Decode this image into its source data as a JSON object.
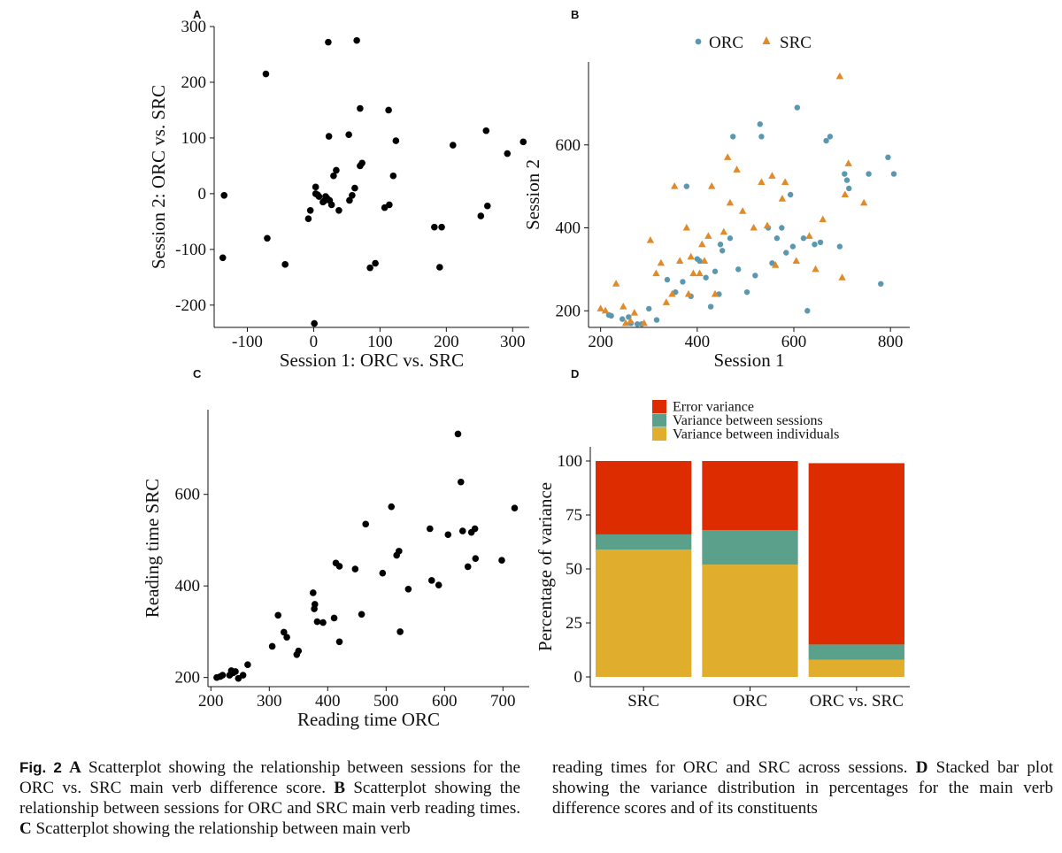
{
  "colors": {
    "orc": "#5b98b0",
    "src": "#e08a2a",
    "error": "#dd2c00",
    "between_sessions": "#5ba08a",
    "between_individuals": "#e0ae2c",
    "points": "#000000"
  },
  "caption": {
    "fig_label": "Fig. 2",
    "left": [
      {
        "bold": "A",
        "text": " Scatterplot showing the relationship between sessions for the ORC vs. SRC main verb difference score. "
      },
      {
        "bold": "B",
        "text": " Scatterplot showing the relationship between sessions for ORC and SRC main verb reading times. "
      },
      {
        "bold": "C",
        "text": " Scatterplot showing the relationship between main verb"
      }
    ],
    "right": [
      {
        "bold": "",
        "text": "reading times for ORC and SRC across sessions. "
      },
      {
        "bold": "D",
        "text": " Stacked bar plot showing the variance distribution in percentages for the main verb difference scores and of its constituents"
      }
    ]
  },
  "chart_data": [
    {
      "panel": "A",
      "type": "scatter",
      "xlabel": "Session 1: ORC vs. SRC",
      "ylabel": "Session 2: ORC vs. SRC",
      "xlim": [
        -150,
        325
      ],
      "ylim": [
        -240,
        300
      ],
      "xticks": [
        -100,
        0,
        100,
        200,
        300
      ],
      "yticks": [
        -200,
        -100,
        0,
        100,
        200,
        300
      ],
      "points": [
        [
          -72,
          215
        ],
        [
          -135,
          -3
        ],
        [
          -137,
          -115
        ],
        [
          -70,
          -80
        ],
        [
          -43,
          -127
        ],
        [
          22,
          272
        ],
        [
          65,
          275
        ],
        [
          70,
          153
        ],
        [
          113,
          150
        ],
        [
          124,
          95
        ],
        [
          23,
          103
        ],
        [
          53,
          106
        ],
        [
          -8,
          -45
        ],
        [
          -5,
          -30
        ],
        [
          3,
          0
        ],
        [
          3,
          12
        ],
        [
          8,
          -5
        ],
        [
          14,
          -15
        ],
        [
          18,
          -5
        ],
        [
          20,
          -8
        ],
        [
          24,
          -12
        ],
        [
          27,
          -20
        ],
        [
          30,
          32
        ],
        [
          34,
          42
        ],
        [
          38,
          -30
        ],
        [
          54,
          -12
        ],
        [
          58,
          -3
        ],
        [
          62,
          10
        ],
        [
          70,
          50
        ],
        [
          73,
          55
        ],
        [
          107,
          -25
        ],
        [
          114,
          -20
        ],
        [
          120,
          32
        ],
        [
          85,
          -133
        ],
        [
          93,
          -125
        ],
        [
          1,
          -233
        ],
        [
          182,
          -60
        ],
        [
          190,
          -132
        ],
        [
          193,
          -60
        ],
        [
          210,
          87
        ],
        [
          252,
          -40
        ],
        [
          260,
          113
        ],
        [
          262,
          -22
        ],
        [
          292,
          72
        ],
        [
          316,
          93
        ],
        [
          6,
          -2
        ],
        [
          16,
          -13
        ]
      ]
    },
    {
      "panel": "B",
      "type": "scatter",
      "xlabel": "Session 1",
      "ylabel": "Session 2",
      "xlim": [
        175,
        840
      ],
      "ylim": [
        160,
        800
      ],
      "xticks": [
        200,
        400,
        600,
        800
      ],
      "yticks": [
        200,
        400,
        600
      ],
      "legend_position": "top",
      "series": [
        {
          "name": "ORC",
          "shape": "circle",
          "points": [
            [
              217,
              190
            ],
            [
              222,
              188
            ],
            [
              245,
              180
            ],
            [
              258,
              185
            ],
            [
              263,
              170
            ],
            [
              276,
              168
            ],
            [
              285,
              168
            ],
            [
              300,
              205
            ],
            [
              316,
              178
            ],
            [
              338,
              275
            ],
            [
              355,
              245
            ],
            [
              370,
              270
            ],
            [
              378,
              500
            ],
            [
              387,
              235
            ],
            [
              400,
              325
            ],
            [
              405,
              320
            ],
            [
              418,
              280
            ],
            [
              428,
              210
            ],
            [
              437,
              295
            ],
            [
              445,
              240
            ],
            [
              448,
              360
            ],
            [
              452,
              345
            ],
            [
              468,
              375
            ],
            [
              474,
              620
            ],
            [
              485,
              300
            ],
            [
              503,
              245
            ],
            [
              520,
              285
            ],
            [
              530,
              650
            ],
            [
              533,
              620
            ],
            [
              547,
              400
            ],
            [
              555,
              315
            ],
            [
              565,
              375
            ],
            [
              575,
              400
            ],
            [
              584,
              340
            ],
            [
              593,
              480
            ],
            [
              598,
              355
            ],
            [
              607,
              690
            ],
            [
              620,
              375
            ],
            [
              628,
              200
            ],
            [
              643,
              360
            ],
            [
              655,
              365
            ],
            [
              667,
              610
            ],
            [
              675,
              620
            ],
            [
              695,
              355
            ],
            [
              705,
              530
            ],
            [
              710,
              515
            ],
            [
              714,
              495
            ],
            [
              755,
              530
            ],
            [
              780,
              265
            ],
            [
              795,
              570
            ],
            [
              807,
              530
            ]
          ]
        },
        {
          "name": "SRC",
          "shape": "triangle",
          "points": [
            [
              200,
              205
            ],
            [
              210,
              200
            ],
            [
              232,
              265
            ],
            [
              247,
              210
            ],
            [
              252,
              170
            ],
            [
              262,
              175
            ],
            [
              270,
              195
            ],
            [
              290,
              170
            ],
            [
              303,
              370
            ],
            [
              315,
              290
            ],
            [
              325,
              315
            ],
            [
              336,
              220
            ],
            [
              348,
              240
            ],
            [
              353,
              500
            ],
            [
              364,
              320
            ],
            [
              378,
              400
            ],
            [
              382,
              240
            ],
            [
              387,
              330
            ],
            [
              392,
              290
            ],
            [
              405,
              290
            ],
            [
              410,
              360
            ],
            [
              415,
              320
            ],
            [
              423,
              380
            ],
            [
              430,
              500
            ],
            [
              437,
              240
            ],
            [
              455,
              390
            ],
            [
              463,
              570
            ],
            [
              468,
              460
            ],
            [
              482,
              540
            ],
            [
              494,
              440
            ],
            [
              517,
              400
            ],
            [
              533,
              510
            ],
            [
              545,
              405
            ],
            [
              555,
              525
            ],
            [
              562,
              310
            ],
            [
              576,
              470
            ],
            [
              582,
              510
            ],
            [
              605,
              320
            ],
            [
              632,
              380
            ],
            [
              645,
              300
            ],
            [
              660,
              420
            ],
            [
              695,
              765
            ],
            [
              700,
              280
            ],
            [
              706,
              480
            ],
            [
              713,
              555
            ],
            [
              745,
              460
            ]
          ]
        }
      ]
    },
    {
      "panel": "C",
      "type": "scatter",
      "xlabel": "Reading time ORC",
      "ylabel": "Reading time SRC",
      "xlim": [
        195,
        745
      ],
      "ylim": [
        180,
        785
      ],
      "xticks": [
        200,
        300,
        400,
        500,
        600,
        700
      ],
      "yticks": [
        200,
        400,
        600
      ],
      "points": [
        [
          210,
          200
        ],
        [
          216,
          202
        ],
        [
          220,
          205
        ],
        [
          232,
          205
        ],
        [
          235,
          215
        ],
        [
          237,
          212
        ],
        [
          238,
          210
        ],
        [
          242,
          213
        ],
        [
          247,
          198
        ],
        [
          255,
          205
        ],
        [
          263,
          228
        ],
        [
          305,
          268
        ],
        [
          315,
          336
        ],
        [
          325,
          299
        ],
        [
          330,
          288
        ],
        [
          347,
          250
        ],
        [
          350,
          258
        ],
        [
          375,
          385
        ],
        [
          377,
          350
        ],
        [
          378,
          360
        ],
        [
          382,
          322
        ],
        [
          392,
          320
        ],
        [
          411,
          330
        ],
        [
          414,
          450
        ],
        [
          420,
          443
        ],
        [
          420,
          278
        ],
        [
          447,
          437
        ],
        [
          458,
          338
        ],
        [
          465,
          535
        ],
        [
          494,
          428
        ],
        [
          509,
          573
        ],
        [
          518,
          467
        ],
        [
          522,
          476
        ],
        [
          524,
          300
        ],
        [
          538,
          393
        ],
        [
          575,
          525
        ],
        [
          578,
          412
        ],
        [
          590,
          402
        ],
        [
          606,
          512
        ],
        [
          623,
          732
        ],
        [
          628,
          627
        ],
        [
          631,
          520
        ],
        [
          640,
          442
        ],
        [
          646,
          517
        ],
        [
          652,
          525
        ],
        [
          653,
          460
        ],
        [
          698,
          456
        ],
        [
          720,
          570
        ]
      ]
    },
    {
      "panel": "D",
      "type": "bar",
      "stacked": true,
      "ylabel": "Percentage of variance",
      "xlabel": "",
      "ylim": [
        0,
        100
      ],
      "yticks": [
        0,
        25,
        50,
        75,
        100
      ],
      "categories": [
        "SRC",
        "ORC",
        "ORC vs. SRC"
      ],
      "legend_position": "top",
      "series": [
        {
          "name": "Variance between individuals",
          "values": [
            59,
            52,
            8
          ]
        },
        {
          "name": "Variance between sessions",
          "values": [
            7,
            16,
            7
          ]
        },
        {
          "name": "Error variance",
          "values": [
            34,
            32,
            84
          ]
        }
      ],
      "legend_order": [
        "Error variance",
        "Variance between sessions",
        "Variance between individuals"
      ]
    }
  ]
}
